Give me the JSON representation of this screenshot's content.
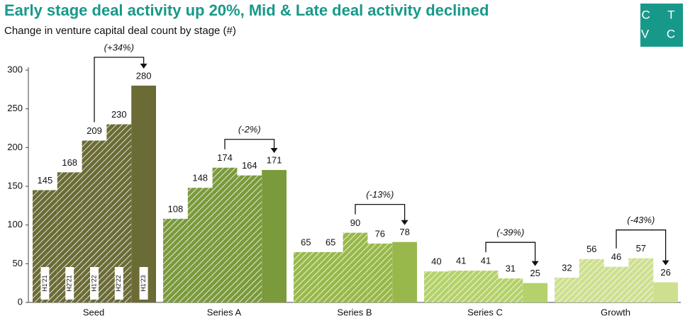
{
  "chart_data": {
    "type": "bar",
    "title": "Early stage deal activity up 20%, Mid & Late deal activity declined",
    "subtitle": "Change in venture capital deal count by stage (#)",
    "logo": [
      "C T",
      "V C"
    ],
    "categories": [
      "Seed",
      "Series A",
      "Series B",
      "Series C",
      "Growth"
    ],
    "category_colors": [
      "#6b6b35",
      "#7b9a3b",
      "#98b84b",
      "#b4d16c",
      "#cde08f"
    ],
    "series": [
      {
        "name": "H1'21",
        "values": [
          145,
          108,
          65,
          40,
          32
        ]
      },
      {
        "name": "H2'21",
        "values": [
          168,
          148,
          65,
          41,
          56
        ]
      },
      {
        "name": "H1'22",
        "values": [
          209,
          174,
          90,
          41,
          46
        ]
      },
      {
        "name": "H2'22",
        "values": [
          230,
          164,
          76,
          31,
          57
        ]
      },
      {
        "name": "H1'23",
        "values": [
          280,
          171,
          78,
          25,
          26
        ]
      }
    ],
    "annotations": [
      "(+34%)",
      "(-2%)",
      "(-13%)",
      "(-39%)",
      "(-43%)"
    ],
    "ylim": [
      0,
      300
    ],
    "yticks": [
      0,
      50,
      100,
      150,
      200,
      250,
      300
    ]
  }
}
